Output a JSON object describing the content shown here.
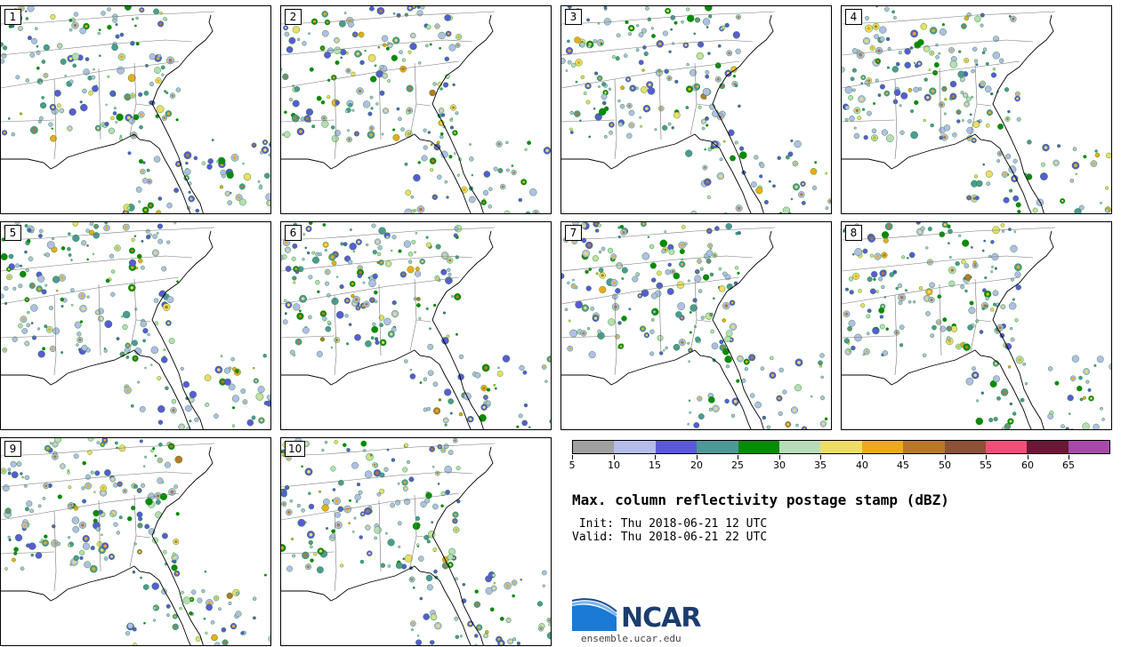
{
  "panels": [
    {
      "label": "1"
    },
    {
      "label": "2"
    },
    {
      "label": "3"
    },
    {
      "label": "4"
    },
    {
      "label": "5"
    },
    {
      "label": "6"
    },
    {
      "label": "7"
    },
    {
      "label": "8"
    },
    {
      "label": "9"
    },
    {
      "label": "10"
    }
  ],
  "colorbar": {
    "ticks": [
      "5",
      "10",
      "15",
      "20",
      "25",
      "30",
      "35",
      "40",
      "45",
      "50",
      "55",
      "60",
      "65"
    ],
    "colors": [
      "#a0a0a0",
      "#b4bcea",
      "#5a5ad6",
      "#4f9898",
      "#0a8a0a",
      "#b8dcb8",
      "#efdc68",
      "#efaa1c",
      "#b8782c",
      "#8c5236",
      "#ef507a",
      "#6a1838",
      "#a84aa8"
    ]
  },
  "title": "Max. column reflectivity postage stamp (dBZ)",
  "init": " Init: Thu 2018-06-21 12 UTC",
  "valid": "Valid: Thu 2018-06-21 22 UTC",
  "logo": {
    "text": "NCAR",
    "site": "ensemble.ucar.edu"
  }
}
